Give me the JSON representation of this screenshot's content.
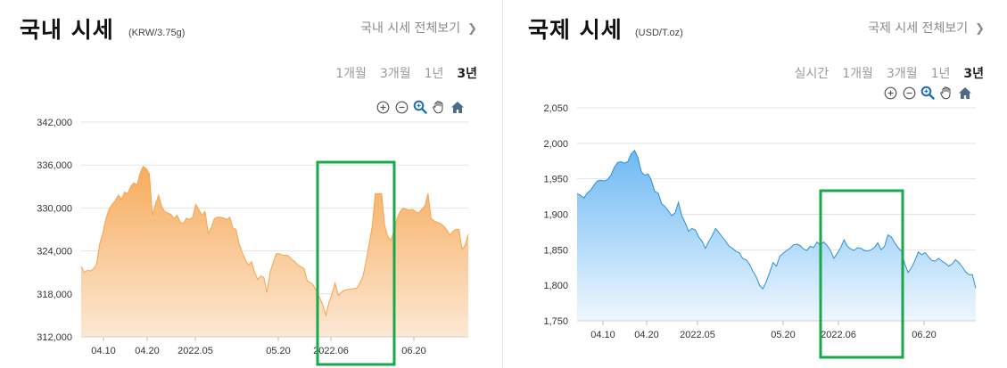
{
  "domestic": {
    "title": "국내 시세",
    "unit": "(KRW/3.75g)",
    "view_all": "국내 시세 전체보기",
    "periods": [
      "1개월",
      "3개월",
      "1년",
      "3년"
    ],
    "active_period": "3년",
    "tool_icons": [
      "zoom-in-icon",
      "zoom-out-icon",
      "zoom-select-icon",
      "pan-hand-icon",
      "home-icon"
    ],
    "colors": {
      "line": "#F7A24C",
      "fill_top": "#F7B366",
      "fill_bottom": "#FDEBD8",
      "highlight_box": "#19A84B"
    }
  },
  "international": {
    "title": "국제 시세",
    "unit": "(USD/T.oz)",
    "view_all": "국제 시세 전체보기",
    "periods": [
      "실시간",
      "1개월",
      "3개월",
      "1년",
      "3년"
    ],
    "active_period": "3년",
    "tool_icons": [
      "zoom-in-icon",
      "zoom-out-icon",
      "zoom-select-icon",
      "pan-hand-icon",
      "home-icon"
    ],
    "colors": {
      "line": "#2E8FD6",
      "fill_top": "#7CC0F5",
      "fill_bottom": "#EAF5FD",
      "highlight_box": "#19A84B"
    }
  },
  "chart_data": [
    {
      "type": "area",
      "x_ticks": [
        "04.10",
        "04.20",
        "2022.05",
        "05.20",
        "2022.06",
        "06.20"
      ],
      "y_ticks": [
        312000,
        318000,
        324000,
        330000,
        336000,
        342000
      ],
      "y_tick_labels": [
        "312,000",
        "318,000",
        "324,000",
        "330,000",
        "336,000",
        "342,000"
      ],
      "ylim": [
        312000,
        342000
      ],
      "grid": true,
      "series": [
        {
          "values": [
            321800,
            321000,
            321300,
            321200,
            321500,
            322200,
            325000,
            326500,
            328500,
            329800,
            330500,
            331000,
            331800,
            331200,
            332200,
            332000,
            333000,
            333500,
            333200,
            334800,
            335800,
            335500,
            334800,
            329000,
            330500,
            331800,
            330200,
            329500,
            329300,
            329100,
            328500,
            329000,
            328000,
            327800,
            328600,
            328400,
            328700,
            330500,
            329800,
            329000,
            329500,
            326500,
            327200,
            328500,
            328700,
            328700,
            328600,
            328400,
            328700,
            327200,
            327000,
            325000,
            323800,
            322800,
            322000,
            322500,
            321000,
            320000,
            320500,
            320300,
            318200,
            321000,
            322400,
            323600,
            323600,
            323400,
            323400,
            323300,
            322800,
            322500,
            322000,
            321800,
            321500,
            319800,
            319600,
            319200,
            318400,
            317500,
            316500,
            315000,
            316800,
            318000,
            319500,
            317800,
            318200,
            318500,
            318600,
            318700,
            318700,
            318800,
            319500,
            320500,
            322500,
            325000,
            327500,
            332000,
            332000,
            332000,
            327500,
            326000,
            325500,
            326800,
            328500,
            329500,
            330000,
            329800,
            329700,
            329800,
            329500,
            329300,
            329800,
            330300,
            332000,
            328500,
            328200,
            328000,
            327800,
            327500,
            327000,
            326200,
            326700,
            327000,
            327000,
            324200,
            324800,
            326300
          ]
        }
      ]
    },
    {
      "type": "area",
      "x_ticks": [
        "04.10",
        "04.20",
        "2022.05",
        "05.20",
        "2022.06",
        "06.20"
      ],
      "y_ticks": [
        1750,
        1800,
        1850,
        1900,
        1950,
        2000,
        2050
      ],
      "y_tick_labels": [
        "1,750",
        "1,800",
        "1,850",
        "1,900",
        "1,950",
        "2,000",
        "2,050"
      ],
      "ylim": [
        1750,
        2050
      ],
      "grid": true,
      "series": [
        {
          "values": [
            1929,
            1927,
            1923,
            1930,
            1934,
            1941,
            1947,
            1948,
            1947,
            1949,
            1955,
            1966,
            1973,
            1974,
            1972,
            1974,
            1985,
            1990,
            1980,
            1960,
            1955,
            1957,
            1948,
            1932,
            1930,
            1915,
            1911,
            1905,
            1898,
            1902,
            1917,
            1898,
            1888,
            1876,
            1880,
            1878,
            1868,
            1862,
            1852,
            1862,
            1870,
            1880,
            1874,
            1868,
            1862,
            1855,
            1852,
            1848,
            1846,
            1838,
            1836,
            1830,
            1820,
            1812,
            1800,
            1795,
            1805,
            1818,
            1832,
            1827,
            1841,
            1845,
            1849,
            1852,
            1857,
            1858,
            1856,
            1851,
            1849,
            1855,
            1853,
            1861,
            1857,
            1861,
            1856,
            1849,
            1838,
            1845,
            1853,
            1864,
            1855,
            1851,
            1849,
            1853,
            1852,
            1849,
            1848,
            1850,
            1853,
            1860,
            1850,
            1855,
            1871,
            1868,
            1860,
            1853,
            1848,
            1830,
            1818,
            1825,
            1835,
            1847,
            1843,
            1846,
            1840,
            1835,
            1834,
            1838,
            1834,
            1831,
            1827,
            1830,
            1836,
            1832,
            1826,
            1819,
            1815,
            1815,
            1796
          ]
        }
      ]
    }
  ]
}
